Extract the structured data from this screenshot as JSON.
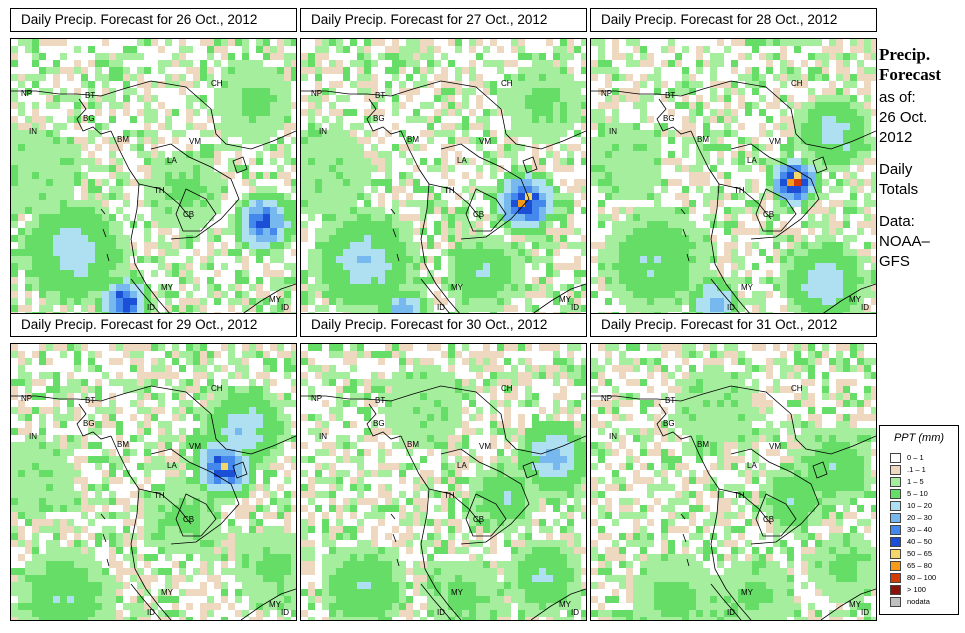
{
  "panels": [
    {
      "title": "Daily Precip. Forecast for  26 Oct., 2012"
    },
    {
      "title": "Daily Precip. Forecast for  27 Oct., 2012"
    },
    {
      "title": "Daily Precip. Forecast for  28 Oct., 2012"
    },
    {
      "title": "Daily Precip. Forecast for  29 Oct., 2012"
    },
    {
      "title": "Daily Precip. Forecast for  30 Oct., 2012"
    },
    {
      "title": "Daily Precip. Forecast for  31 Oct., 2012"
    }
  ],
  "map_labels": {
    "np": "NP",
    "bt": "BT",
    "in": "IN",
    "bg": "BG",
    "bm": "BM",
    "ch": "CH",
    "vm": "VM",
    "la": "LA",
    "th": "TH",
    "cb": "CB",
    "my": "MY",
    "id": "ID",
    "my2": "MY",
    "id2": "ID"
  },
  "sidebar": {
    "heading1": "Precip.",
    "heading2": "Forecast",
    "asof": "as of:",
    "date1": "26 Oct.",
    "date2": "2012",
    "daily1": "Daily",
    "daily2": "Totals",
    "data1": "Data:",
    "data2": "NOAA–",
    "data3": "GFS"
  },
  "legend": {
    "title": "PPT (mm)",
    "items": [
      {
        "label": "0 – 1",
        "color": "#ffffff"
      },
      {
        "label": ".1 – 1",
        "color": "#eed8bf"
      },
      {
        "label": "1 – 5",
        "color": "#a5ee9e"
      },
      {
        "label": "5 – 10",
        "color": "#66dd66"
      },
      {
        "label": "10 – 20",
        "color": "#aee0f2"
      },
      {
        "label": "20 – 30",
        "color": "#77b8ee"
      },
      {
        "label": "30 – 40",
        "color": "#4488ee"
      },
      {
        "label": "40 – 50",
        "color": "#1a4fd6"
      },
      {
        "label": "50 – 65",
        "color": "#f5d66b"
      },
      {
        "label": "65 – 80",
        "color": "#f59a1a"
      },
      {
        "label": "80 – 100",
        "color": "#d43a0a"
      },
      {
        "label": "> 100",
        "color": "#8a1208"
      },
      {
        "label": "nodata",
        "color": "#bfbfbf"
      }
    ]
  }
}
